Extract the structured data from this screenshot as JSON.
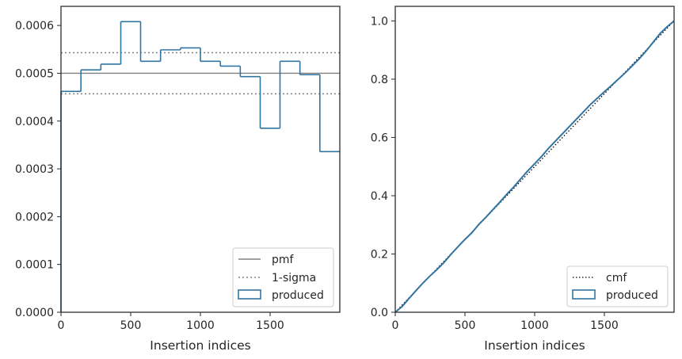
{
  "chart_data": [
    {
      "type": "histogram",
      "xlabel": "Insertion indices",
      "ylabel": "",
      "xlim": [
        0,
        2000
      ],
      "ylim": [
        0,
        0.00064
      ],
      "xticks": [
        0,
        500,
        1000,
        1500
      ],
      "yticks": [
        0,
        0.0001,
        0.0002,
        0.0003,
        0.0004,
        0.0005,
        0.0006
      ],
      "ytick_labels": [
        "0.0000",
        "0.0001",
        "0.0002",
        "0.0003",
        "0.0004",
        "0.0005",
        "0.0006"
      ],
      "xtick_labels": [
        "0",
        "500",
        "1000",
        "1500"
      ],
      "grid": false,
      "legend_position": "lower-right",
      "legend": [
        "pmf",
        "1-sigma",
        "produced"
      ],
      "pmf": 0.0005,
      "sigma_band": [
        0.000457,
        0.000543
      ],
      "bin_edges": [
        0,
        143,
        286,
        429,
        571,
        714,
        857,
        1000,
        1143,
        1286,
        1429,
        1571,
        1714,
        1857,
        2000
      ],
      "values": [
        0.000462,
        0.000507,
        0.000519,
        0.000608,
        0.000525,
        0.000549,
        0.000553,
        0.000525,
        0.000515,
        0.000493,
        0.000385,
        0.000525,
        0.000497,
        0.000336
      ],
      "colors": {
        "produced": "#3274a1",
        "pmf": "#808080",
        "sigma": "#808080"
      }
    },
    {
      "type": "line",
      "xlabel": "Insertion indices",
      "ylabel": "",
      "xlim": [
        0,
        2000
      ],
      "ylim": [
        0,
        1.05
      ],
      "xticks": [
        0,
        500,
        1000,
        1500
      ],
      "yticks": [
        0,
        0.2,
        0.4,
        0.6,
        0.8,
        1.0
      ],
      "ytick_labels": [
        "0.0",
        "0.2",
        "0.4",
        "0.6",
        "0.8",
        "1.0"
      ],
      "xtick_labels": [
        "0",
        "500",
        "1000",
        "1500"
      ],
      "grid": false,
      "legend_position": "lower-right",
      "legend": [
        "cmf",
        "produced"
      ],
      "cmf": {
        "x": [
          0,
          2000
        ],
        "y": [
          0,
          1
        ]
      },
      "produced": {
        "x": [
          0,
          50,
          100,
          150,
          200,
          250,
          300,
          350,
          400,
          450,
          500,
          550,
          600,
          650,
          700,
          750,
          800,
          850,
          900,
          950,
          1000,
          1050,
          1100,
          1150,
          1200,
          1250,
          1300,
          1350,
          1400,
          1450,
          1500,
          1550,
          1600,
          1650,
          1700,
          1750,
          1800,
          1850,
          1900,
          1950,
          2000
        ],
        "y": [
          0,
          0.02,
          0.048,
          0.075,
          0.101,
          0.125,
          0.147,
          0.171,
          0.199,
          0.225,
          0.25,
          0.273,
          0.302,
          0.326,
          0.352,
          0.378,
          0.405,
          0.43,
          0.458,
          0.485,
          0.51,
          0.535,
          0.563,
          0.588,
          0.613,
          0.638,
          0.663,
          0.688,
          0.713,
          0.735,
          0.757,
          0.778,
          0.8,
          0.822,
          0.846,
          0.87,
          0.897,
          0.927,
          0.957,
          0.98,
          1.0
        ]
      },
      "colors": {
        "produced": "#3274a1",
        "cmf": "#000000"
      }
    }
  ]
}
